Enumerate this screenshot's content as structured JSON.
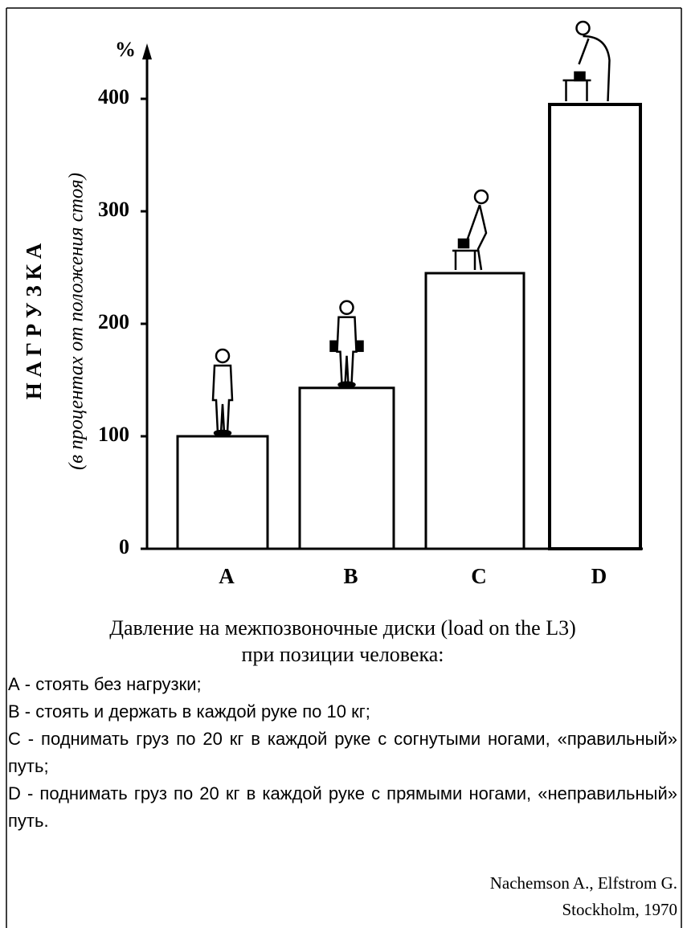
{
  "chart_data": {
    "type": "bar",
    "categories": [
      "A",
      "B",
      "C",
      "D"
    ],
    "values": [
      100,
      143,
      245,
      395
    ],
    "color": "#ffffff",
    "ylim": [
      0,
      445
    ],
    "yticks": [
      0,
      100,
      200,
      300,
      400
    ],
    "y_unit": "%",
    "y_label": "Н А Г Р У З К А",
    "y_sublabel": "(в процентах от положения стоя)",
    "caption": [
      "Давление на межпозвоночные диски (load on the L3)",
      "при позиции человека:"
    ],
    "notes": [
      "А - стоять без нагрузки;",
      "В - стоять и держать в каждой руке по 10 кг;",
      "С - поднимать груз по 20 кг в каждой руке с согнутыми ногами, «правильный» путь;",
      "D - поднимать груз по 20 кг в каждой руке с прямыми ногами, «неправильный» путь."
    ],
    "source": [
      "Nachemson A., Elfstrom G.",
      "Stockholm, 1970"
    ]
  }
}
